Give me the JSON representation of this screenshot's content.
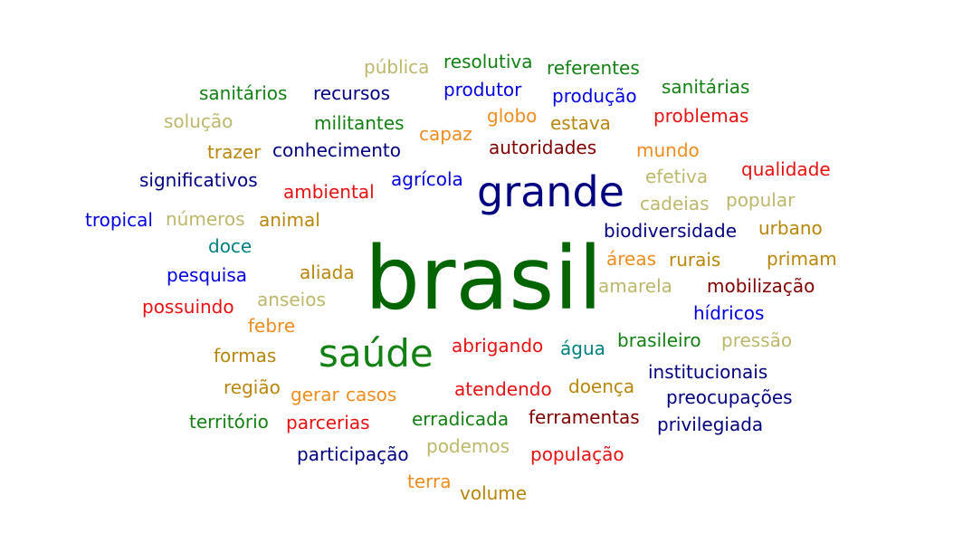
{
  "palette": {
    "dark_green": "#006400",
    "green": "#138013",
    "navy": "#000080",
    "blue": "#0000e0",
    "red": "#e81010",
    "maroon": "#800000",
    "orange": "#f08c1c",
    "gold": "#b8860b",
    "khaki": "#bdb76b",
    "teal": "#008080"
  },
  "words": [
    "brasil",
    "grande",
    "saúde",
    "pública",
    "resolutiva",
    "referentes",
    "sanitários",
    "recursos",
    "produtor",
    "produção",
    "sanitárias",
    "solução",
    "militantes",
    "globo",
    "estava",
    "problemas",
    "capaz",
    "trazer",
    "conhecimento",
    "autoridades",
    "mundo",
    "significativos",
    "agrícola",
    "efetiva",
    "qualidade",
    "ambiental",
    "cadeias",
    "popular",
    "tropical",
    "números",
    "animal",
    "biodiversidade",
    "urbano",
    "doce",
    "áreas",
    "rurais",
    "primam",
    "pesquisa",
    "aliada",
    "amarela",
    "mobilização",
    "possuindo",
    "anseios",
    "hídricos",
    "febre",
    "abrigando",
    "água",
    "brasileiro",
    "pressão",
    "formas",
    "institucionais",
    "região",
    "gerar",
    "casos",
    "atendendo",
    "doença",
    "preocupações",
    "território",
    "parcerias",
    "erradicada",
    "ferramentas",
    "privilegiada",
    "participação",
    "podemos",
    "população",
    "terra",
    "volume"
  ]
}
